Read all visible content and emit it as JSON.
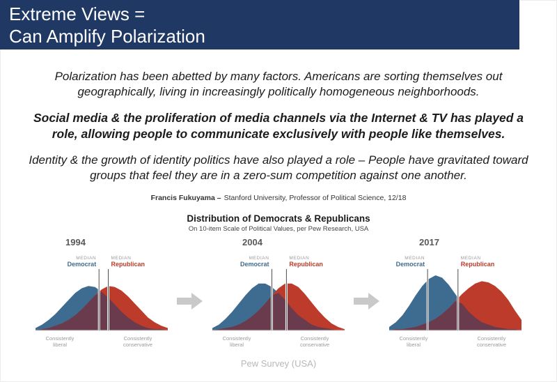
{
  "slide": {
    "header": {
      "line1": "Extreme Views =",
      "line2": "Can Amplify Polarization",
      "bg_color": "#1f3864",
      "text_color": "#ffffff"
    },
    "paragraphs": [
      {
        "text": "Polarization has been abetted by many factors. Americans are sorting themselves out geographically, living in increasingly politically homogeneous neighborhoods.",
        "bold": false
      },
      {
        "text": "Social media & the proliferation of media channels via the Internet & TV has played a role, allowing people to communicate exclusively with people like themselves.",
        "bold": true
      },
      {
        "text": "Identity & the growth of identity politics have also played a role – People have gravitated toward groups that feel they are in a zero-sum competition against one another.",
        "bold": false
      }
    ],
    "attribution": {
      "name": "Francis Fukuyama –",
      "text": "Stanford University, Professor of Political Science, 12/18"
    },
    "footer_caption": "Pew Survey (USA)"
  },
  "chart_data": {
    "type": "area",
    "title": "Distribution of Democrats & Republicans",
    "subtitle": "On 10-item Scale of Political Values, per Pew Research, USA",
    "x_axis_left_label": "Consistently liberal",
    "x_axis_right_label": "Consistently conservative",
    "median_label": "MEDIAN",
    "ylim": [
      0,
      50
    ],
    "series_meta": {
      "democrat": {
        "label": "Democrat",
        "color": "#3e6c91"
      },
      "republican": {
        "label": "Republican",
        "color": "#bc3b2a"
      },
      "overlap_color": "#6a3a4d"
    },
    "panels": [
      {
        "year": "1994",
        "democrat": [
          2,
          5,
          9,
          14,
          20,
          26,
          32,
          36,
          38,
          37,
          33,
          28,
          22,
          16,
          11,
          7,
          4,
          2,
          1,
          1,
          0
        ],
        "republican": [
          0,
          1,
          2,
          4,
          6,
          9,
          13,
          18,
          24,
          30,
          35,
          38,
          37,
          34,
          29,
          23,
          17,
          11,
          7,
          4,
          2
        ],
        "median_democrat": 0.48,
        "median_republican": 0.55
      },
      {
        "year": "2004",
        "democrat": [
          2,
          5,
          10,
          16,
          23,
          30,
          36,
          40,
          40,
          37,
          32,
          26,
          19,
          13,
          9,
          5,
          3,
          2,
          1,
          0,
          0
        ],
        "republican": [
          0,
          1,
          2,
          3,
          5,
          8,
          12,
          17,
          23,
          30,
          36,
          40,
          40,
          37,
          31,
          24,
          17,
          11,
          6,
          3,
          1
        ],
        "median_democrat": 0.45,
        "median_republican": 0.56
      },
      {
        "year": "2017",
        "democrat": [
          3,
          7,
          13,
          21,
          30,
          38,
          44,
          47,
          45,
          39,
          31,
          23,
          16,
          11,
          7,
          5,
          3,
          2,
          1,
          1,
          0
        ],
        "republican": [
          0,
          1,
          1,
          2,
          3,
          5,
          7,
          10,
          14,
          19,
          25,
          31,
          36,
          40,
          42,
          41,
          38,
          33,
          26,
          17,
          9
        ],
        "median_democrat": 0.29,
        "median_republican": 0.52
      }
    ]
  }
}
